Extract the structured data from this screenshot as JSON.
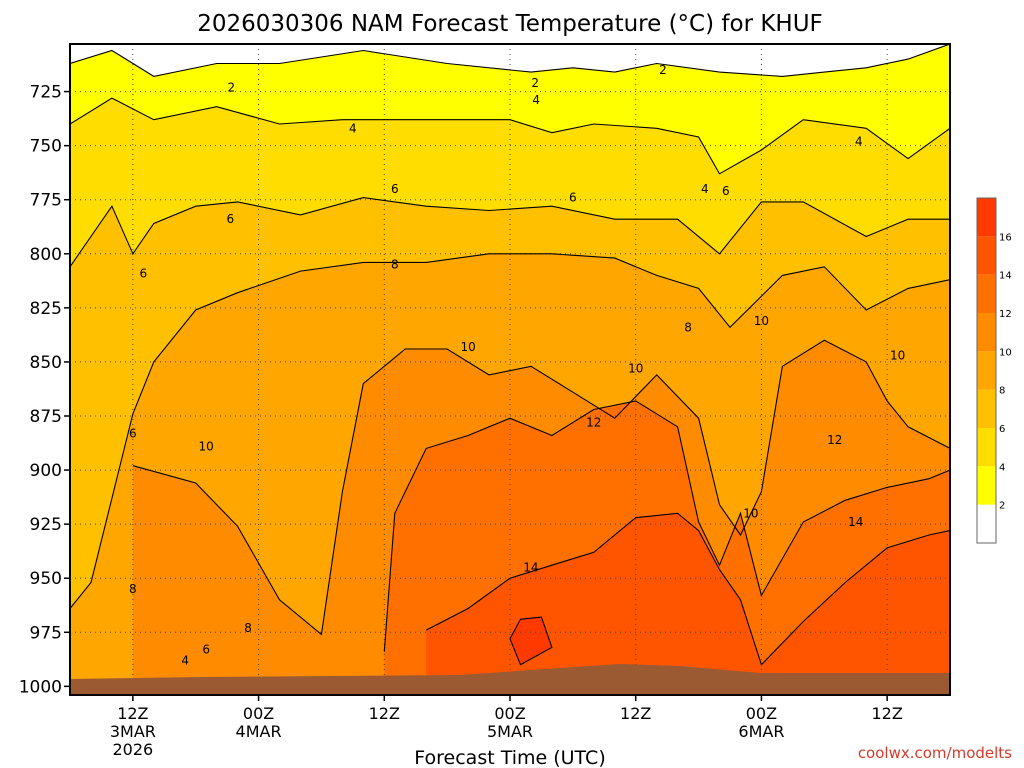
{
  "chart_data": {
    "type": "heatmap",
    "title": "2026030306 NAM Forecast Temperature (°C) for KHUF",
    "xlabel": "Forecast Time (UTC)",
    "ylabel": "",
    "y_unit": "hPa",
    "y_range": [
      1004,
      703
    ],
    "x_range_hours": [
      0,
      84
    ],
    "y_ticks": [
      725,
      750,
      775,
      800,
      825,
      850,
      875,
      900,
      925,
      950,
      975,
      1000
    ],
    "x_ticks": [
      {
        "hour": 6,
        "label": "12Z",
        "sub": "3MAR",
        "sub2": "2026"
      },
      {
        "hour": 18,
        "label": "00Z",
        "sub": "4MAR",
        "sub2": ""
      },
      {
        "hour": 30,
        "label": "12Z",
        "sub": "",
        "sub2": ""
      },
      {
        "hour": 42,
        "label": "00Z",
        "sub": "5MAR",
        "sub2": ""
      },
      {
        "hour": 54,
        "label": "12Z",
        "sub": "",
        "sub2": ""
      },
      {
        "hour": 66,
        "label": "00Z",
        "sub": "6MAR",
        "sub2": ""
      },
      {
        "hour": 78,
        "label": "12Z",
        "sub": "",
        "sub2": ""
      }
    ],
    "legend": {
      "placement": "right",
      "levels": [
        2,
        4,
        6,
        8,
        10,
        12,
        14,
        16
      ],
      "labels": [
        "2",
        "4",
        "6",
        "8",
        "10",
        "12",
        "14",
        "16"
      ],
      "colors": [
        "#ffffff",
        "#ffff00",
        "#ffdd00",
        "#ffc000",
        "#ffa600",
        "#ff8c00",
        "#ff7000",
        "#ff5500",
        "#ff3a00"
      ]
    },
    "series": [
      {
        "name": "2",
        "values": [
          [
            0,
            712
          ],
          [
            4,
            706
          ],
          [
            8,
            718
          ],
          [
            14,
            712
          ],
          [
            20,
            712
          ],
          [
            28,
            706
          ],
          [
            36,
            712
          ],
          [
            44,
            716
          ],
          [
            48,
            714
          ],
          [
            52,
            716
          ],
          [
            56,
            712
          ],
          [
            62,
            716
          ],
          [
            68,
            718
          ],
          [
            72,
            716
          ],
          [
            76,
            714
          ],
          [
            80,
            710
          ],
          [
            84,
            703
          ]
        ]
      },
      {
        "name": "4",
        "values": [
          [
            0,
            740
          ],
          [
            4,
            728
          ],
          [
            8,
            738
          ],
          [
            14,
            732
          ],
          [
            20,
            740
          ],
          [
            26,
            738
          ],
          [
            34,
            738
          ],
          [
            42,
            738
          ],
          [
            46,
            744
          ],
          [
            50,
            740
          ],
          [
            56,
            742
          ],
          [
            60,
            746
          ],
          [
            62,
            763
          ],
          [
            66,
            752
          ],
          [
            70,
            738
          ],
          [
            76,
            742
          ],
          [
            80,
            756
          ],
          [
            84,
            742
          ]
        ]
      },
      {
        "name": "6",
        "values": [
          [
            0,
            806
          ],
          [
            4,
            778
          ],
          [
            6,
            800
          ],
          [
            8,
            786
          ],
          [
            12,
            778
          ],
          [
            16,
            776
          ],
          [
            22,
            782
          ],
          [
            28,
            774
          ],
          [
            34,
            778
          ],
          [
            40,
            780
          ],
          [
            46,
            778
          ],
          [
            52,
            784
          ],
          [
            58,
            784
          ],
          [
            62,
            800
          ],
          [
            66,
            776
          ],
          [
            70,
            776
          ],
          [
            76,
            792
          ],
          [
            80,
            784
          ],
          [
            84,
            784
          ]
        ]
      },
      {
        "name": "8",
        "values": [
          [
            0,
            964
          ],
          [
            2,
            952
          ],
          [
            6,
            874
          ],
          [
            8,
            850
          ],
          [
            12,
            826
          ],
          [
            16,
            818
          ],
          [
            22,
            808
          ],
          [
            28,
            804
          ],
          [
            34,
            804
          ],
          [
            40,
            800
          ],
          [
            46,
            800
          ],
          [
            52,
            802
          ],
          [
            56,
            810
          ],
          [
            60,
            816
          ],
          [
            63,
            834
          ],
          [
            68,
            810
          ],
          [
            72,
            806
          ],
          [
            76,
            826
          ],
          [
            80,
            816
          ],
          [
            84,
            812
          ]
        ]
      },
      {
        "name": "10",
        "values": [
          [
            6,
            898
          ],
          [
            12,
            906
          ],
          [
            16,
            926
          ],
          [
            20,
            960
          ],
          [
            24,
            976
          ],
          [
            26,
            910
          ],
          [
            28,
            860
          ],
          [
            32,
            844
          ],
          [
            36,
            844
          ],
          [
            40,
            856
          ],
          [
            44,
            852
          ],
          [
            48,
            864
          ],
          [
            52,
            876
          ],
          [
            56,
            856
          ],
          [
            60,
            876
          ],
          [
            62,
            916
          ],
          [
            64,
            930
          ],
          [
            66,
            910
          ],
          [
            68,
            852
          ],
          [
            72,
            840
          ],
          [
            76,
            850
          ],
          [
            78,
            868
          ],
          [
            80,
            880
          ],
          [
            84,
            890
          ]
        ]
      },
      {
        "name": "12",
        "values": [
          [
            30,
            984
          ],
          [
            31,
            920
          ],
          [
            34,
            890
          ],
          [
            38,
            884
          ],
          [
            42,
            876
          ],
          [
            46,
            884
          ],
          [
            50,
            872
          ],
          [
            54,
            868
          ],
          [
            58,
            880
          ],
          [
            60,
            924
          ],
          [
            62,
            944
          ],
          [
            64,
            920
          ],
          [
            66,
            958
          ],
          [
            70,
            924
          ],
          [
            74,
            914
          ],
          [
            78,
            908
          ],
          [
            82,
            904
          ],
          [
            84,
            900
          ]
        ]
      },
      {
        "name": "14",
        "values": [
          [
            34,
            974
          ],
          [
            38,
            964
          ],
          [
            42,
            950
          ],
          [
            46,
            944
          ],
          [
            50,
            938
          ],
          [
            54,
            922
          ],
          [
            58,
            920
          ],
          [
            60,
            928
          ],
          [
            62,
            946
          ],
          [
            64,
            960
          ],
          [
            66,
            990
          ],
          [
            70,
            970
          ],
          [
            74,
            952
          ],
          [
            78,
            936
          ],
          [
            82,
            930
          ],
          [
            84,
            928
          ]
        ]
      },
      {
        "name": "16",
        "values": [
          [
            42,
            978
          ],
          [
            43,
            969
          ],
          [
            45,
            968
          ],
          [
            46,
            982
          ],
          [
            43,
            990
          ]
        ]
      }
    ],
    "contour_labels": [
      {
        "text": "2",
        "hour": 15.4,
        "p": 723
      },
      {
        "text": "2",
        "hour": 44.4,
        "p": 721
      },
      {
        "text": "2",
        "hour": 56.6,
        "p": 715
      },
      {
        "text": "4",
        "hour": 44.5,
        "p": 729
      },
      {
        "text": "4",
        "hour": 27.0,
        "p": 742
      },
      {
        "text": "4",
        "hour": 60.6,
        "p": 770
      },
      {
        "text": "4",
        "hour": 75.3,
        "p": 748
      },
      {
        "text": "6",
        "hour": 31.0,
        "p": 770
      },
      {
        "text": "6",
        "hour": 48.0,
        "p": 774
      },
      {
        "text": "6",
        "hour": 62.6,
        "p": 771
      },
      {
        "text": "6",
        "hour": 15.3,
        "p": 784
      },
      {
        "text": "6",
        "hour": 7.0,
        "p": 809
      },
      {
        "text": "6",
        "hour": 6.0,
        "p": 883
      },
      {
        "text": "8",
        "hour": 31.0,
        "p": 805
      },
      {
        "text": "8",
        "hour": 59.0,
        "p": 834
      },
      {
        "text": "8",
        "hour": 6.0,
        "p": 955
      },
      {
        "text": "8",
        "hour": 17.0,
        "p": 973
      },
      {
        "text": "10",
        "hour": 38.0,
        "p": 843
      },
      {
        "text": "10",
        "hour": 54.0,
        "p": 853
      },
      {
        "text": "10",
        "hour": 66.0,
        "p": 831
      },
      {
        "text": "10",
        "hour": 79.0,
        "p": 847
      },
      {
        "text": "10",
        "hour": 13.0,
        "p": 889
      },
      {
        "text": "10",
        "hour": 65.0,
        "p": 920
      },
      {
        "text": "12",
        "hour": 50.0,
        "p": 878
      },
      {
        "text": "12",
        "hour": 73.0,
        "p": 886
      },
      {
        "text": "14",
        "hour": 44.0,
        "p": 945
      },
      {
        "text": "14",
        "hour": 75.0,
        "p": 924
      },
      {
        "text": "4",
        "hour": 11.0,
        "p": 988
      },
      {
        "text": "6",
        "hour": 13.0,
        "p": 983
      }
    ]
  },
  "credit": "coolwx.com/modelts",
  "colors": {
    "ground": "#9b5a32",
    "frame": "#000000",
    "credit": "#d43a2a"
  }
}
